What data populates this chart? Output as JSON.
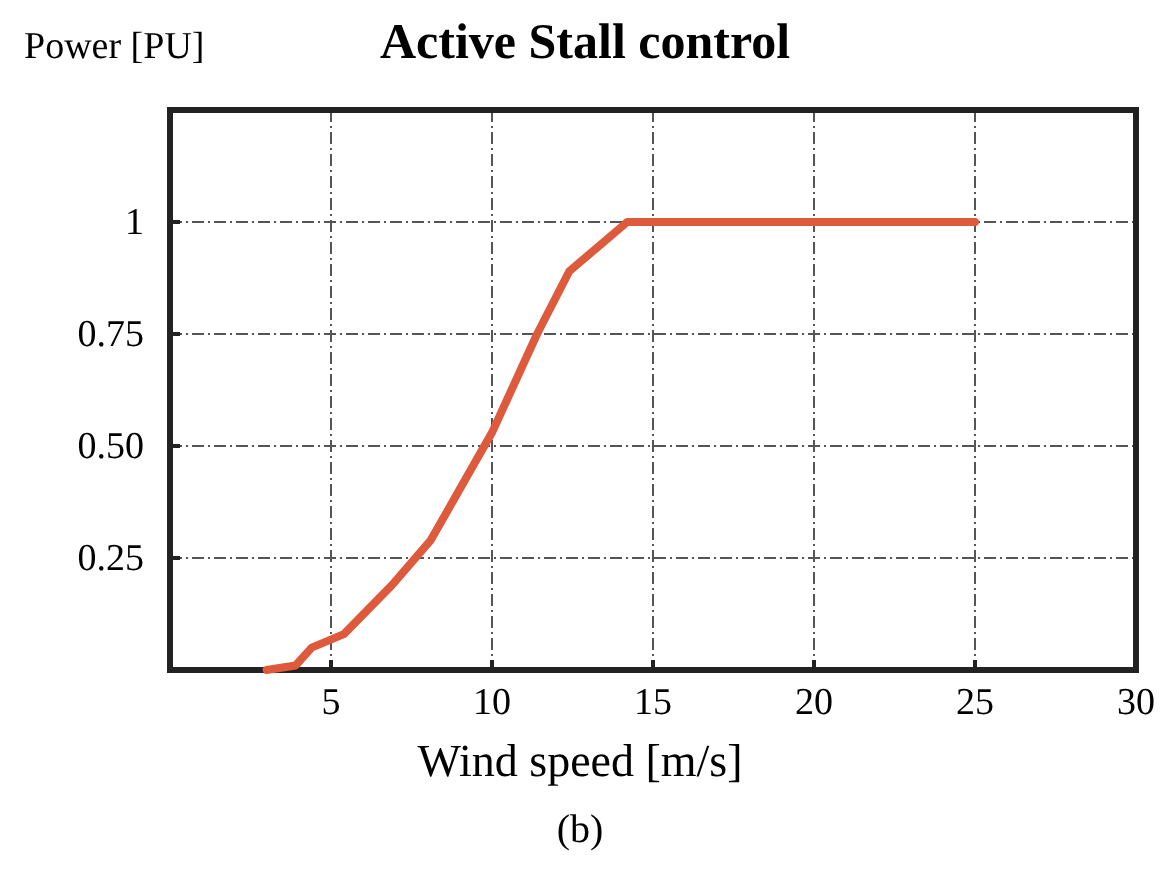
{
  "chart_data": {
    "type": "line",
    "title": "Active Stall control",
    "xlabel": "Wind speed [m/s]",
    "ylabel": "Power [PU]",
    "annotations": [
      "(b)"
    ],
    "x": [
      3,
      3.9,
      4.4,
      5.4,
      6.9,
      8.1,
      10,
      11.4,
      12.4,
      14.2,
      25
    ],
    "series": [
      {
        "color": "#dd5a3c",
        "values": [
          0,
          0.01,
          0.05,
          0.08,
          0.19,
          0.29,
          0.53,
          0.75,
          0.89,
          1,
          1
        ]
      }
    ],
    "xlim": [
      0,
      30
    ],
    "xticks": [
      {
        "value": 0,
        "label": null
      },
      5,
      10,
      15,
      20,
      25,
      30
    ],
    "ylim": [
      0,
      1.25
    ],
    "yticks": [
      {
        "value": 0,
        "label": null
      },
      0.25,
      {
        "value": 0.5,
        "label": "0.50"
      },
      0.75,
      1
    ],
    "grid": true,
    "line_style": "solid",
    "marker": "none"
  }
}
